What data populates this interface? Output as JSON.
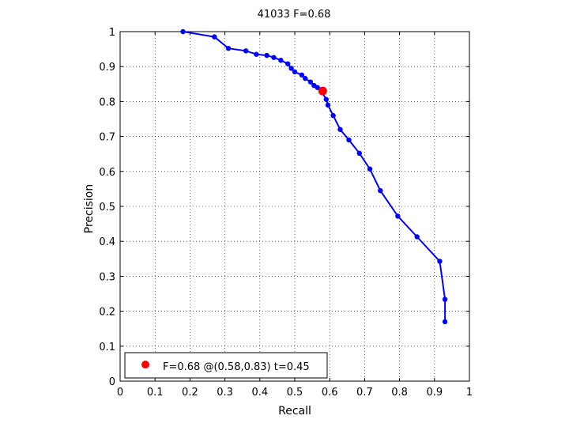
{
  "chart_data": {
    "type": "line",
    "title": "41033 F=0.68",
    "xlabel": "Recall",
    "ylabel": "Precision",
    "xlim": [
      0,
      1
    ],
    "ylim": [
      0,
      1
    ],
    "xticks": [
      "0",
      "0.1",
      "0.2",
      "0.3",
      "0.4",
      "0.5",
      "0.6",
      "0.7",
      "0.8",
      "0.9",
      "1"
    ],
    "yticks": [
      "0",
      "0.1",
      "0.2",
      "0.3",
      "0.4",
      "0.5",
      "0.6",
      "0.7",
      "0.8",
      "0.9",
      "1"
    ],
    "grid": true,
    "legend_position": "bottom-left",
    "series": [
      {
        "color": "#0000ff",
        "x": [
          0.18,
          0.27,
          0.31,
          0.36,
          0.39,
          0.42,
          0.44,
          0.46,
          0.48,
          0.49,
          0.5,
          0.52,
          0.53,
          0.545,
          0.555,
          0.565,
          0.575,
          0.59,
          0.595,
          0.61,
          0.63,
          0.655,
          0.685,
          0.715,
          0.745,
          0.795,
          0.85,
          0.915,
          0.93,
          0.93
        ],
        "y": [
          1.0,
          0.985,
          0.952,
          0.945,
          0.935,
          0.932,
          0.926,
          0.918,
          0.908,
          0.895,
          0.885,
          0.876,
          0.866,
          0.856,
          0.846,
          0.84,
          0.832,
          0.806,
          0.79,
          0.76,
          0.72,
          0.69,
          0.652,
          0.607,
          0.545,
          0.472,
          0.413,
          0.343,
          0.234,
          0.17
        ]
      }
    ],
    "best_point": {
      "color": "#ff0000",
      "x": 0.58,
      "y": 0.83,
      "legend": "F=0.68 @(0.58,0.83) t=0.45"
    }
  }
}
